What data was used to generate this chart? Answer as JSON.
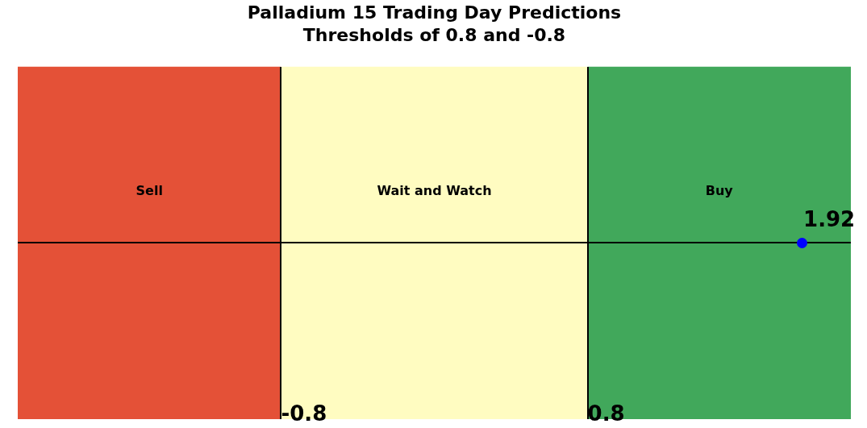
{
  "chart_data": {
    "type": "other",
    "title": "Palladium 15 Trading Day Predictions",
    "subtitle": "Thresholds of 0.8 and -0.8",
    "values": [
      1.92
    ],
    "data_labels": true,
    "bands": [
      {
        "axis": "x",
        "label": "Sell",
        "color": "#e45137"
      },
      {
        "axis": "x",
        "label": "Wait and Watch",
        "color": "#fffcc1"
      },
      {
        "axis": "x",
        "label": "Buy",
        "color": "#41a85b"
      }
    ],
    "annotations": [
      "-0.8",
      "0.8"
    ]
  }
}
